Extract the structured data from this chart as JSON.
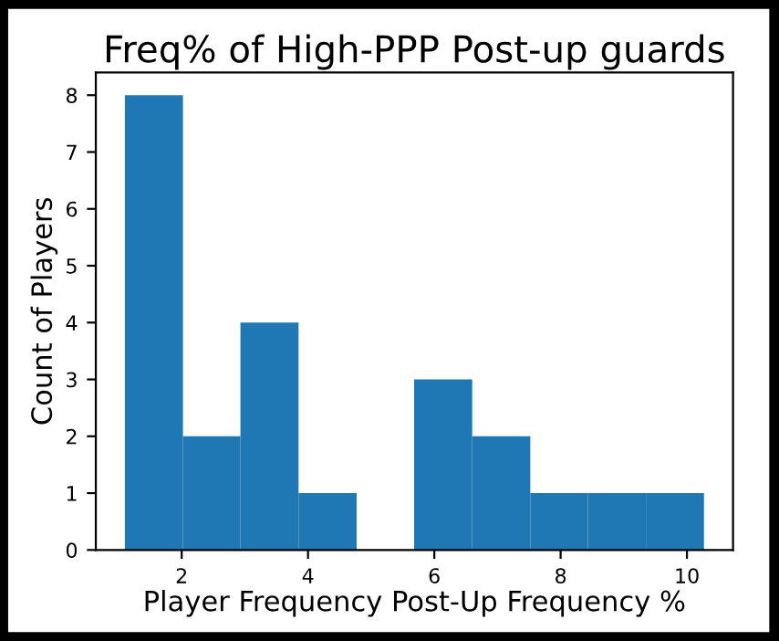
{
  "chart_data": {
    "type": "histogram",
    "title": "Freq% of High-PPP Post-up guards",
    "xlabel": "Player Frequency Post-Up Frequency %",
    "ylabel": "Count of Players",
    "bins": [
      1.1,
      2.02,
      2.93,
      3.85,
      4.77,
      5.68,
      6.6,
      7.52,
      8.43,
      9.35,
      10.27
    ],
    "values": [
      8,
      2,
      4,
      1,
      0,
      3,
      2,
      1,
      1,
      1
    ],
    "color": "#1f77b4",
    "xlim": [
      0.64,
      10.73
    ],
    "xticks": [
      2,
      4,
      6,
      8,
      10
    ],
    "ylim": [
      0,
      8.4
    ],
    "yticks": [
      0,
      1,
      2,
      3,
      4,
      5,
      6,
      7,
      8
    ],
    "grid": false
  }
}
